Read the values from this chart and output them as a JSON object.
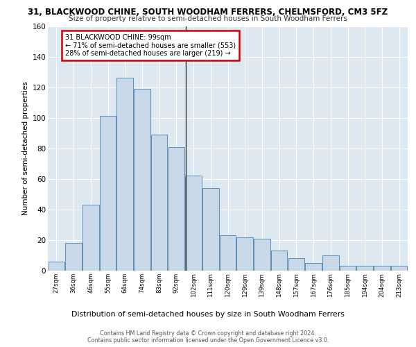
{
  "title": "31, BLACKWOOD CHINE, SOUTH WOODHAM FERRERS, CHELMSFORD, CM3 5FZ",
  "subtitle": "Size of property relative to semi-detached houses in South Woodham Ferrers",
  "xlabel": "Distribution of semi-detached houses by size in South Woodham Ferrers",
  "ylabel": "Number of semi-detached properties",
  "categories": [
    "27sqm",
    "36sqm",
    "46sqm",
    "55sqm",
    "64sqm",
    "74sqm",
    "83sqm",
    "92sqm",
    "102sqm",
    "111sqm",
    "120sqm",
    "129sqm",
    "139sqm",
    "148sqm",
    "157sqm",
    "167sqm",
    "176sqm",
    "185sqm",
    "194sqm",
    "204sqm",
    "213sqm"
  ],
  "values": [
    6,
    18,
    43,
    101,
    126,
    119,
    89,
    81,
    62,
    54,
    23,
    22,
    21,
    13,
    8,
    5,
    10,
    3,
    3,
    3,
    3
  ],
  "bar_color": "#c8d8e8",
  "bar_edge_color": "#5b8db8",
  "vline_position": 7.54,
  "vline_color": "#333333",
  "annotation_text": "31 BLACKWOOD CHINE: 99sqm\n← 71% of semi-detached houses are smaller (553)\n28% of semi-detached houses are larger (219) →",
  "ylim": [
    0,
    160
  ],
  "yticks": [
    0,
    20,
    40,
    60,
    80,
    100,
    120,
    140,
    160
  ],
  "background_color": "#dde8f0",
  "footer_line1": "Contains HM Land Registry data © Crown copyright and database right 2024.",
  "footer_line2": "Contains public sector information licensed under the Open Government Licence v3.0."
}
